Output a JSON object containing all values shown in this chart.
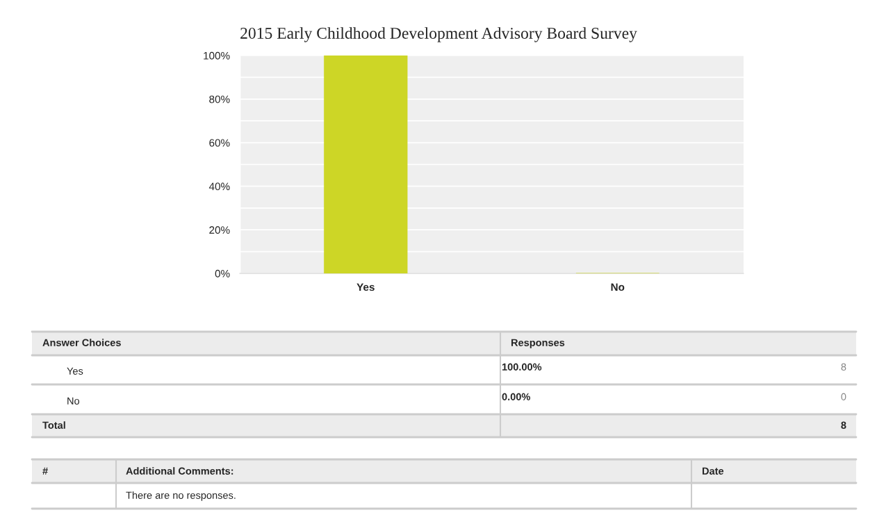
{
  "chart_data": {
    "type": "bar",
    "title": "2015 Early Childhood Development Advisory Board Survey",
    "categories": [
      "Yes",
      "No"
    ],
    "values": [
      100,
      0
    ],
    "color": "#cdd626",
    "ylim": [
      0,
      100
    ],
    "yticks": [
      {
        "value": 0,
        "label": "0%"
      },
      {
        "value": 10,
        "label": null
      },
      {
        "value": 20,
        "label": "20%"
      },
      {
        "value": 30,
        "label": null
      },
      {
        "value": 40,
        "label": "40%"
      },
      {
        "value": 50,
        "label": null
      },
      {
        "value": 60,
        "label": "60%"
      },
      {
        "value": 70,
        "label": null
      },
      {
        "value": 80,
        "label": "80%"
      },
      {
        "value": 90,
        "label": null
      },
      {
        "value": 100,
        "label": "100%"
      }
    ],
    "grid": "y",
    "annotations": [
      "Answer Choices",
      "Responses",
      "8",
      "0",
      "Total",
      "8",
      "#",
      "Additional Comments:",
      "Date",
      "There are no responses.",
      "100.00%",
      "0.00%"
    ]
  }
}
